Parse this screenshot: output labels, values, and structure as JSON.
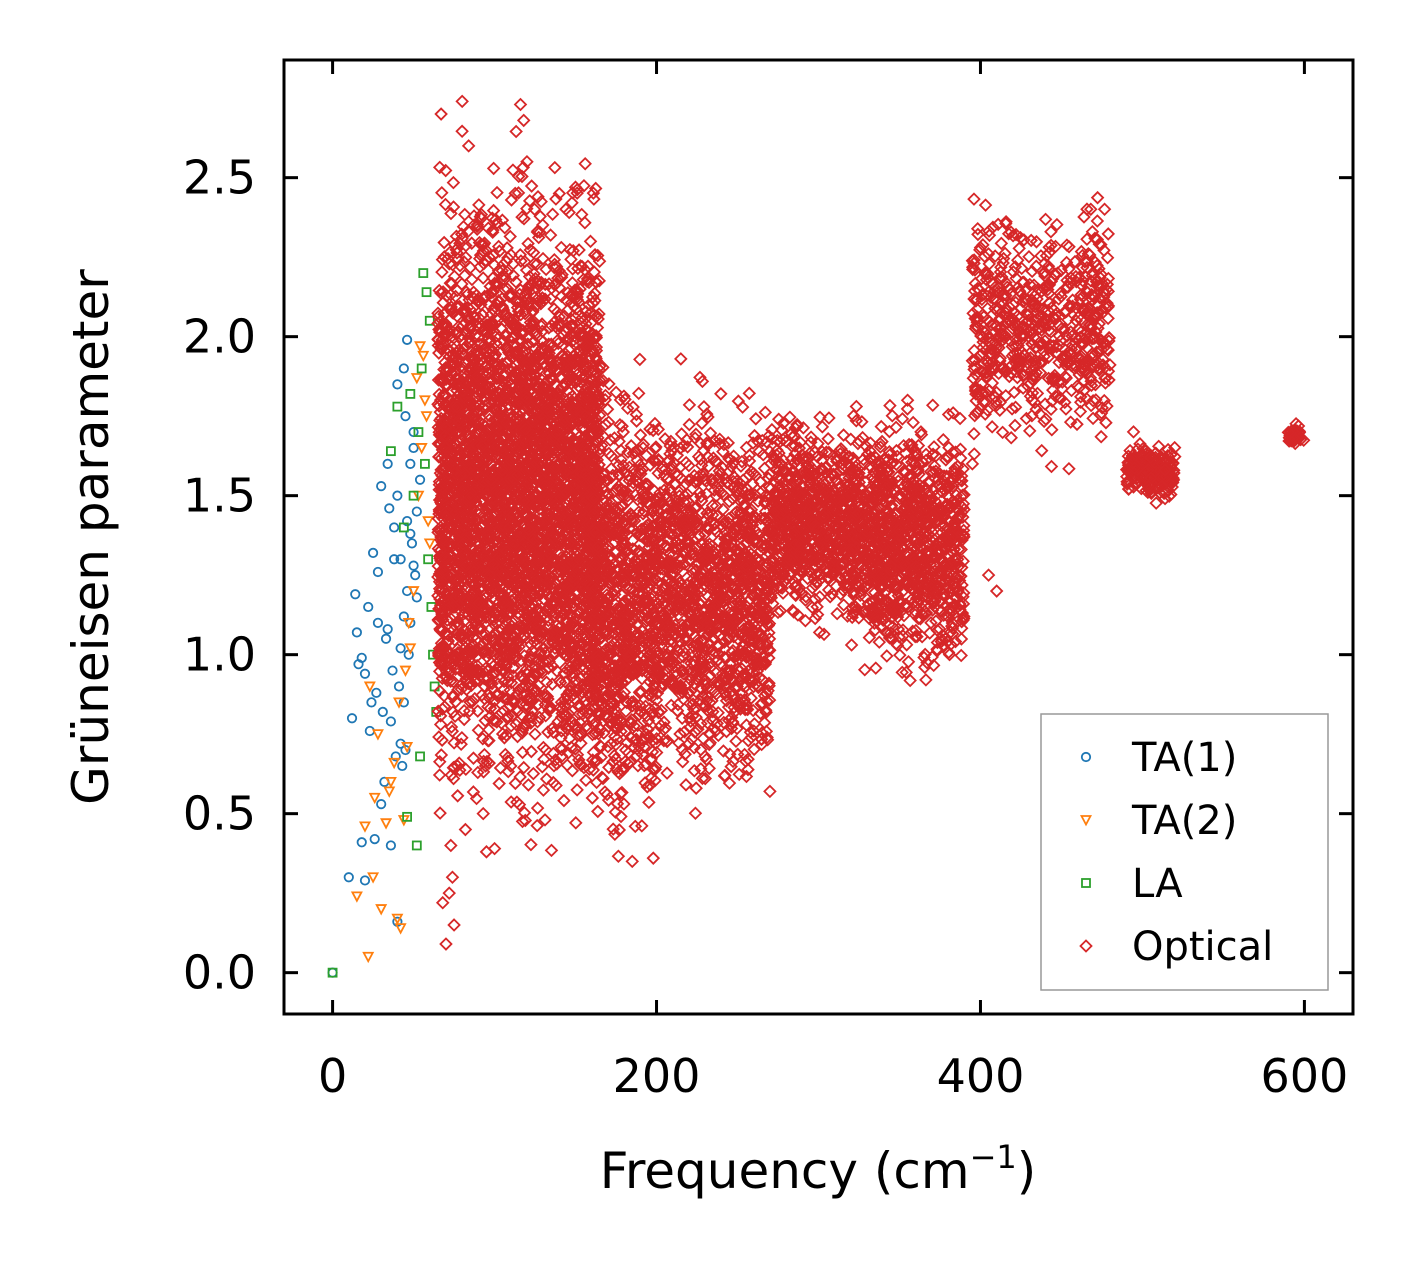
{
  "chart_data": {
    "type": "scatter",
    "title": "",
    "xlabel": "Frequency (cm",
    "xlabel_sup": "−1",
    "xlabel_close": ")",
    "ylabel": "Grüneisen parameter",
    "xlim": [
      -30,
      630
    ],
    "ylim": [
      -0.13,
      2.87
    ],
    "xticks": [
      0,
      200,
      400,
      600
    ],
    "xtick_labels": [
      "0",
      "200",
      "400",
      "600"
    ],
    "yticks": [
      0.0,
      0.5,
      1.0,
      1.5,
      2.0,
      2.5
    ],
    "ytick_labels": [
      "0.0",
      "0.5",
      "1.0",
      "1.5",
      "2.0",
      "2.5"
    ],
    "legend_position": "lower-right",
    "series": [
      {
        "name": "TA(1)",
        "label": "TA(1)",
        "marker": "circle",
        "color": "#1f77b4",
        "x": [
          0,
          10,
          12,
          14,
          16,
          18,
          20,
          22,
          24,
          26,
          28,
          30,
          32,
          34,
          36,
          38,
          40,
          42,
          44,
          46,
          48,
          50,
          52,
          54,
          30,
          35,
          40,
          45,
          50,
          38,
          42,
          46,
          48,
          25,
          28,
          33,
          37,
          41,
          44,
          47,
          49,
          51,
          43,
          45,
          39,
          36,
          31,
          27,
          23,
          20,
          18,
          15,
          34,
          40,
          46,
          48,
          50,
          52,
          44,
          42
        ],
        "y": [
          0.0,
          0.3,
          0.8,
          1.19,
          0.97,
          0.41,
          0.29,
          1.15,
          0.85,
          0.42,
          1.1,
          0.53,
          0.6,
          1.08,
          0.4,
          1.3,
          0.16,
          0.72,
          1.9,
          1.99,
          1.6,
          1.7,
          1.45,
          1.55,
          1.53,
          1.46,
          1.85,
          1.75,
          1.65,
          1.4,
          1.3,
          1.2,
          1.1,
          1.32,
          1.26,
          1.05,
          0.95,
          0.9,
          0.85,
          1.0,
          1.35,
          1.25,
          0.65,
          0.7,
          0.68,
          0.79,
          0.82,
          0.88,
          0.76,
          0.94,
          0.99,
          1.07,
          1.6,
          1.5,
          1.42,
          1.38,
          1.28,
          1.18,
          1.12,
          1.02
        ]
      },
      {
        "name": "TA(2)",
        "label": "TA(2)",
        "marker": "triangle-down",
        "color": "#ff7f0e",
        "x": [
          15,
          20,
          22,
          25,
          28,
          30,
          33,
          35,
          38,
          40,
          42,
          44,
          46,
          48,
          50,
          52,
          54,
          56,
          58,
          60,
          23,
          26,
          36,
          41,
          47,
          53,
          55,
          57,
          59,
          45
        ],
        "y": [
          0.24,
          0.46,
          0.05,
          0.3,
          0.75,
          0.2,
          0.47,
          0.57,
          0.66,
          0.17,
          0.14,
          0.48,
          0.71,
          1.02,
          1.2,
          1.87,
          1.97,
          1.94,
          1.75,
          1.35,
          0.9,
          0.55,
          0.6,
          0.85,
          1.1,
          1.5,
          1.65,
          1.8,
          1.42,
          0.95
        ]
      },
      {
        "name": "LA",
        "label": "LA",
        "marker": "square",
        "color": "#2ca02c",
        "x": [
          0,
          36,
          40,
          46,
          50,
          52,
          54,
          56,
          58,
          60,
          62,
          64,
          44,
          48,
          55,
          57,
          59,
          61,
          63,
          53
        ],
        "y": [
          0.0,
          1.64,
          1.78,
          0.49,
          1.5,
          0.4,
          0.68,
          2.2,
          2.14,
          2.05,
          1.0,
          0.82,
          1.4,
          1.82,
          1.9,
          1.6,
          1.3,
          1.15,
          0.9,
          1.7
        ]
      },
      {
        "name": "Optical",
        "label": "Optical",
        "marker": "diamond",
        "color": "#d62728",
        "bands": [
          {
            "xr": [
              65,
              165
            ],
            "yr": [
              0.55,
              2.45
            ],
            "n": 4200
          },
          {
            "xr": [
              160,
              200
            ],
            "yr": [
              0.45,
              1.85
            ],
            "n": 900
          },
          {
            "xr": [
              200,
              270
            ],
            "yr": [
              0.6,
              1.8
            ],
            "n": 1300
          },
          {
            "xr": [
              270,
              320
            ],
            "yr": [
              1.1,
              1.75
            ],
            "n": 700
          },
          {
            "xr": [
              320,
              390
            ],
            "yr": [
              0.95,
              1.75
            ],
            "n": 1100
          },
          {
            "xr": [
              395,
              480
            ],
            "yr": [
              1.65,
              2.4
            ],
            "n": 650
          },
          {
            "xr": [
              490,
              520
            ],
            "yr": [
              1.48,
              1.68
            ],
            "n": 200
          },
          {
            "xr": [
              590,
              600
            ],
            "yr": [
              1.66,
              1.72
            ],
            "n": 40
          }
        ],
        "outliers_x": [
          67,
          70,
          75,
          80,
          84,
          95,
          100,
          116,
          118,
          120,
          185,
          198,
          230,
          215,
          270,
          410,
          405,
          395,
          72,
          74,
          68,
          73,
          82,
          93,
          140,
          150,
          110,
          125,
          400,
          355
        ],
        "outliers_y": [
          2.7,
          0.09,
          0.15,
          2.74,
          2.6,
          0.38,
          0.39,
          2.73,
          2.68,
          2.55,
          0.35,
          0.36,
          0.68,
          1.93,
          0.57,
          1.2,
          1.25,
          1.6,
          0.25,
          0.3,
          0.22,
          0.4,
          0.45,
          0.5,
          2.45,
          2.47,
          0.65,
          0.75,
          2.28,
          1.8
        ]
      }
    ]
  }
}
